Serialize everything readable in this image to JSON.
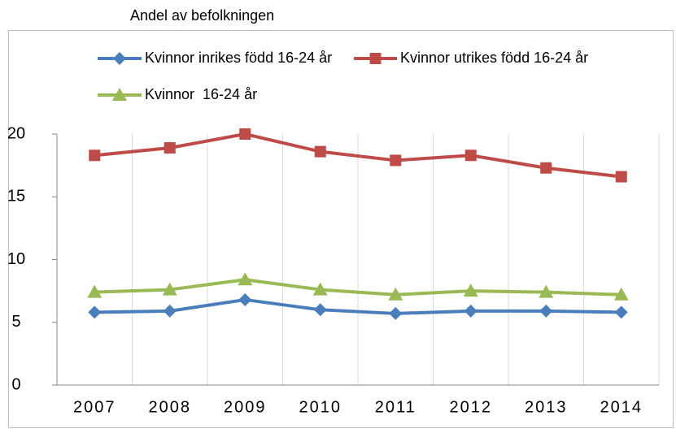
{
  "chart_data": {
    "type": "line",
    "title": "Andel av befolkningen",
    "categories": [
      "2007",
      "2008",
      "2009",
      "2010",
      "2011",
      "2012",
      "2013",
      "2014"
    ],
    "series": [
      {
        "name": "Kvinnor inrikes född 16-24 år",
        "color": "#4a7ebb",
        "marker": "diamond",
        "values": [
          5.8,
          5.9,
          6.8,
          6.0,
          5.7,
          5.9,
          5.9,
          5.8
        ]
      },
      {
        "name": "Kvinnor utrikes född 16-24 år",
        "color": "#be4b48",
        "marker": "square",
        "values": [
          18.3,
          18.9,
          20.0,
          18.6,
          17.9,
          18.3,
          17.3,
          16.6
        ]
      },
      {
        "name": "Kvinnor  16-24 år",
        "color": "#98b954",
        "marker": "triangle",
        "values": [
          7.4,
          7.6,
          8.4,
          7.6,
          7.2,
          7.5,
          7.4,
          7.2
        ]
      }
    ],
    "ylim": [
      0,
      20
    ],
    "yticks": [
      0,
      5,
      10,
      15,
      20
    ]
  }
}
